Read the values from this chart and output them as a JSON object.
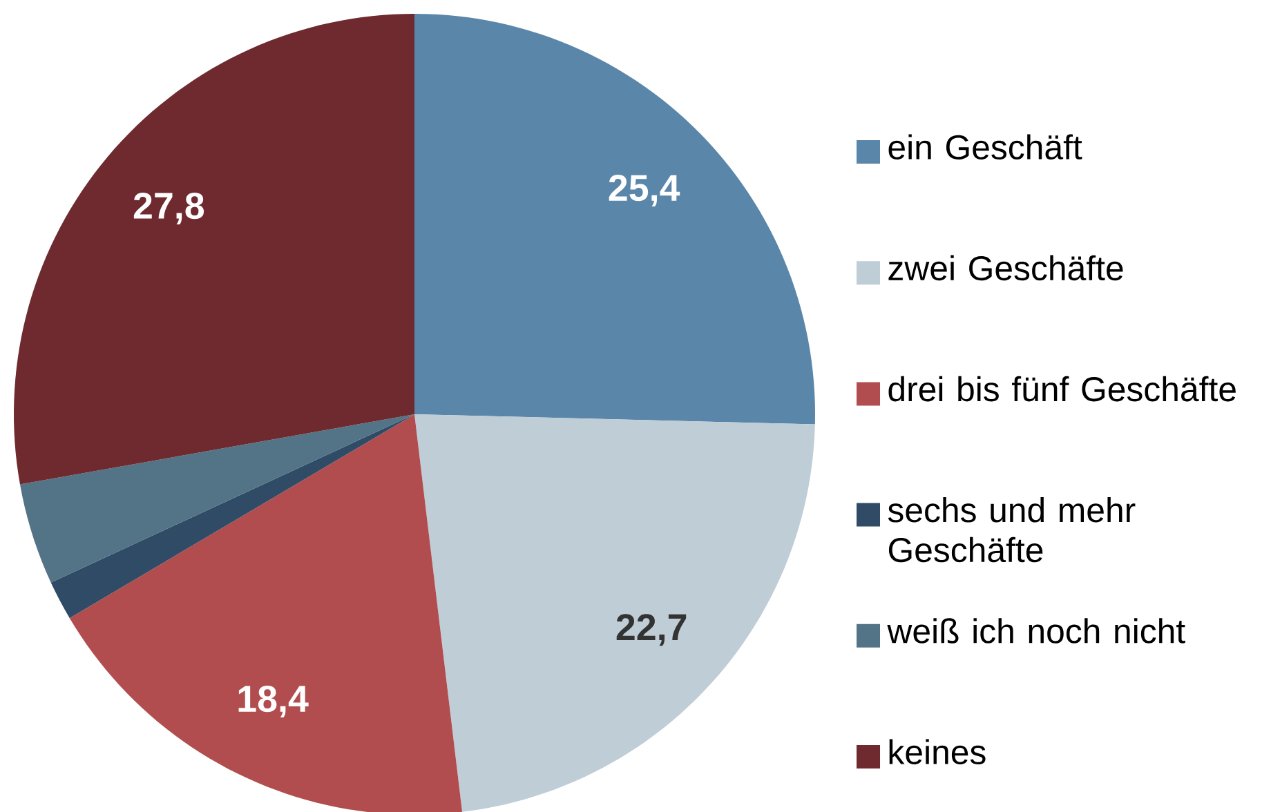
{
  "chart_data": {
    "type": "pie",
    "categories": [
      "ein Geschäft",
      "zwei Geschäfte",
      "drei bis fünf Geschäfte",
      "sechs und mehr Geschäfte",
      "weiß ich noch nicht",
      "keines"
    ],
    "values": [
      25.4,
      22.7,
      18.4,
      1.6,
      4.1,
      27.8
    ],
    "value_labels": [
      "25,4",
      "22,7",
      "18,4",
      null,
      null,
      "27,8"
    ],
    "colors": [
      "#5a86aa",
      "#bfcdd6",
      "#b24d4f",
      "#2f4b66",
      "#537386",
      "#6e2a2e"
    ],
    "legend": "right"
  }
}
